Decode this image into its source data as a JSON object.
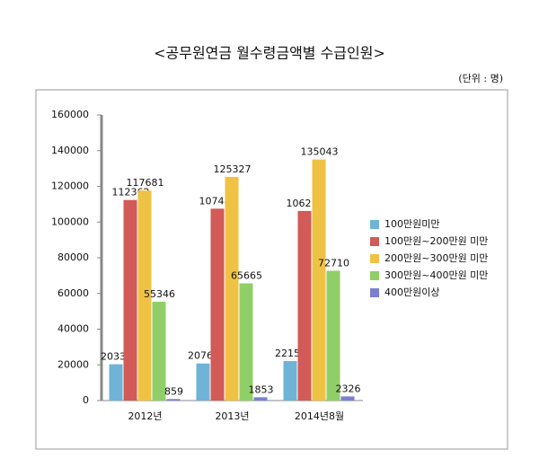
{
  "chart_data": {
    "type": "bar",
    "title": "<공무원연금 월수령금액별 수급인원>",
    "unit": "(단위 : 명)",
    "categories": [
      "2012년",
      "2013년",
      "2014년8월"
    ],
    "series": [
      {
        "name": "100만원미만",
        "color": "#6fb3d6",
        "values": [
          20334,
          20764,
          22156
        ]
      },
      {
        "name": "100만원~200만원 미만",
        "color": "#d25a57",
        "values": [
          112362,
          107489,
          106215
        ]
      },
      {
        "name": "200만원~300만원 미만",
        "color": "#f0c244",
        "values": [
          117681,
          125327,
          135043
        ]
      },
      {
        "name": "300만원~400만원 미만",
        "color": "#90cf68",
        "values": [
          55346,
          65665,
          72710
        ]
      },
      {
        "name": "400만원이상",
        "color": "#7a7fd2",
        "values": [
          859,
          1853,
          2326
        ]
      }
    ],
    "ylim": [
      0,
      160000
    ],
    "yticks": [
      0,
      20000,
      40000,
      60000,
      80000,
      100000,
      120000,
      140000,
      160000
    ],
    "legend": "right"
  }
}
